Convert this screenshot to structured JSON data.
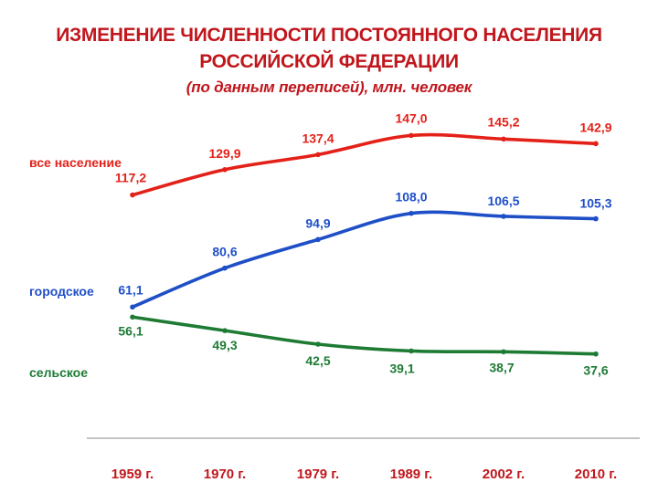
{
  "title_line1": "ИЗМЕНЕНИЕ ЧИСЛЕННОСТИ ПОСТОЯННОГО НАСЕЛЕНИЯ",
  "title_line2": "РОССИЙСКОЙ ФЕДЕРАЦИИ",
  "subtitle": "(по данным переписей), млн. человек",
  "chart_data": {
    "type": "line",
    "title": "ИЗМЕНЕНИЕ ЧИСЛЕННОСТИ ПОСТОЯННОГО НАСЕЛЕНИЯ РОССИЙСКОЙ ФЕДЕРАЦИИ",
    "subtitle": "(по данным переписей), млн. человек",
    "categories": [
      "1959 г.",
      "1970 г.",
      "1979 г.",
      "1989 г.",
      "2002 г.",
      "2010 г."
    ],
    "series": [
      {
        "name": "все население",
        "color": "#e32119",
        "values": [
          117.2,
          129.9,
          137.4,
          147.0,
          145.2,
          142.9
        ],
        "labels": [
          "117,2",
          "129,9",
          "137,4",
          "147,0",
          "145,2",
          "142,9"
        ]
      },
      {
        "name": "городское",
        "color": "#1f4fc7",
        "values": [
          61.1,
          80.6,
          94.9,
          108.0,
          106.5,
          105.3
        ],
        "labels": [
          "61,1",
          "80,6",
          "94,9",
          "108,0",
          "106,5",
          "105,3"
        ]
      },
      {
        "name": "сельское",
        "color": "#1e7b34",
        "values": [
          56.1,
          49.3,
          42.5,
          39.1,
          38.7,
          37.6
        ],
        "labels": [
          "56,1",
          "49,3",
          "42,5",
          "39,1",
          "38,7",
          "37,6"
        ]
      }
    ],
    "xlabel": "",
    "ylabel": "",
    "legend": "left",
    "grid": false,
    "axis_color": "#b0b0b0",
    "category_color": "#c0161c"
  }
}
